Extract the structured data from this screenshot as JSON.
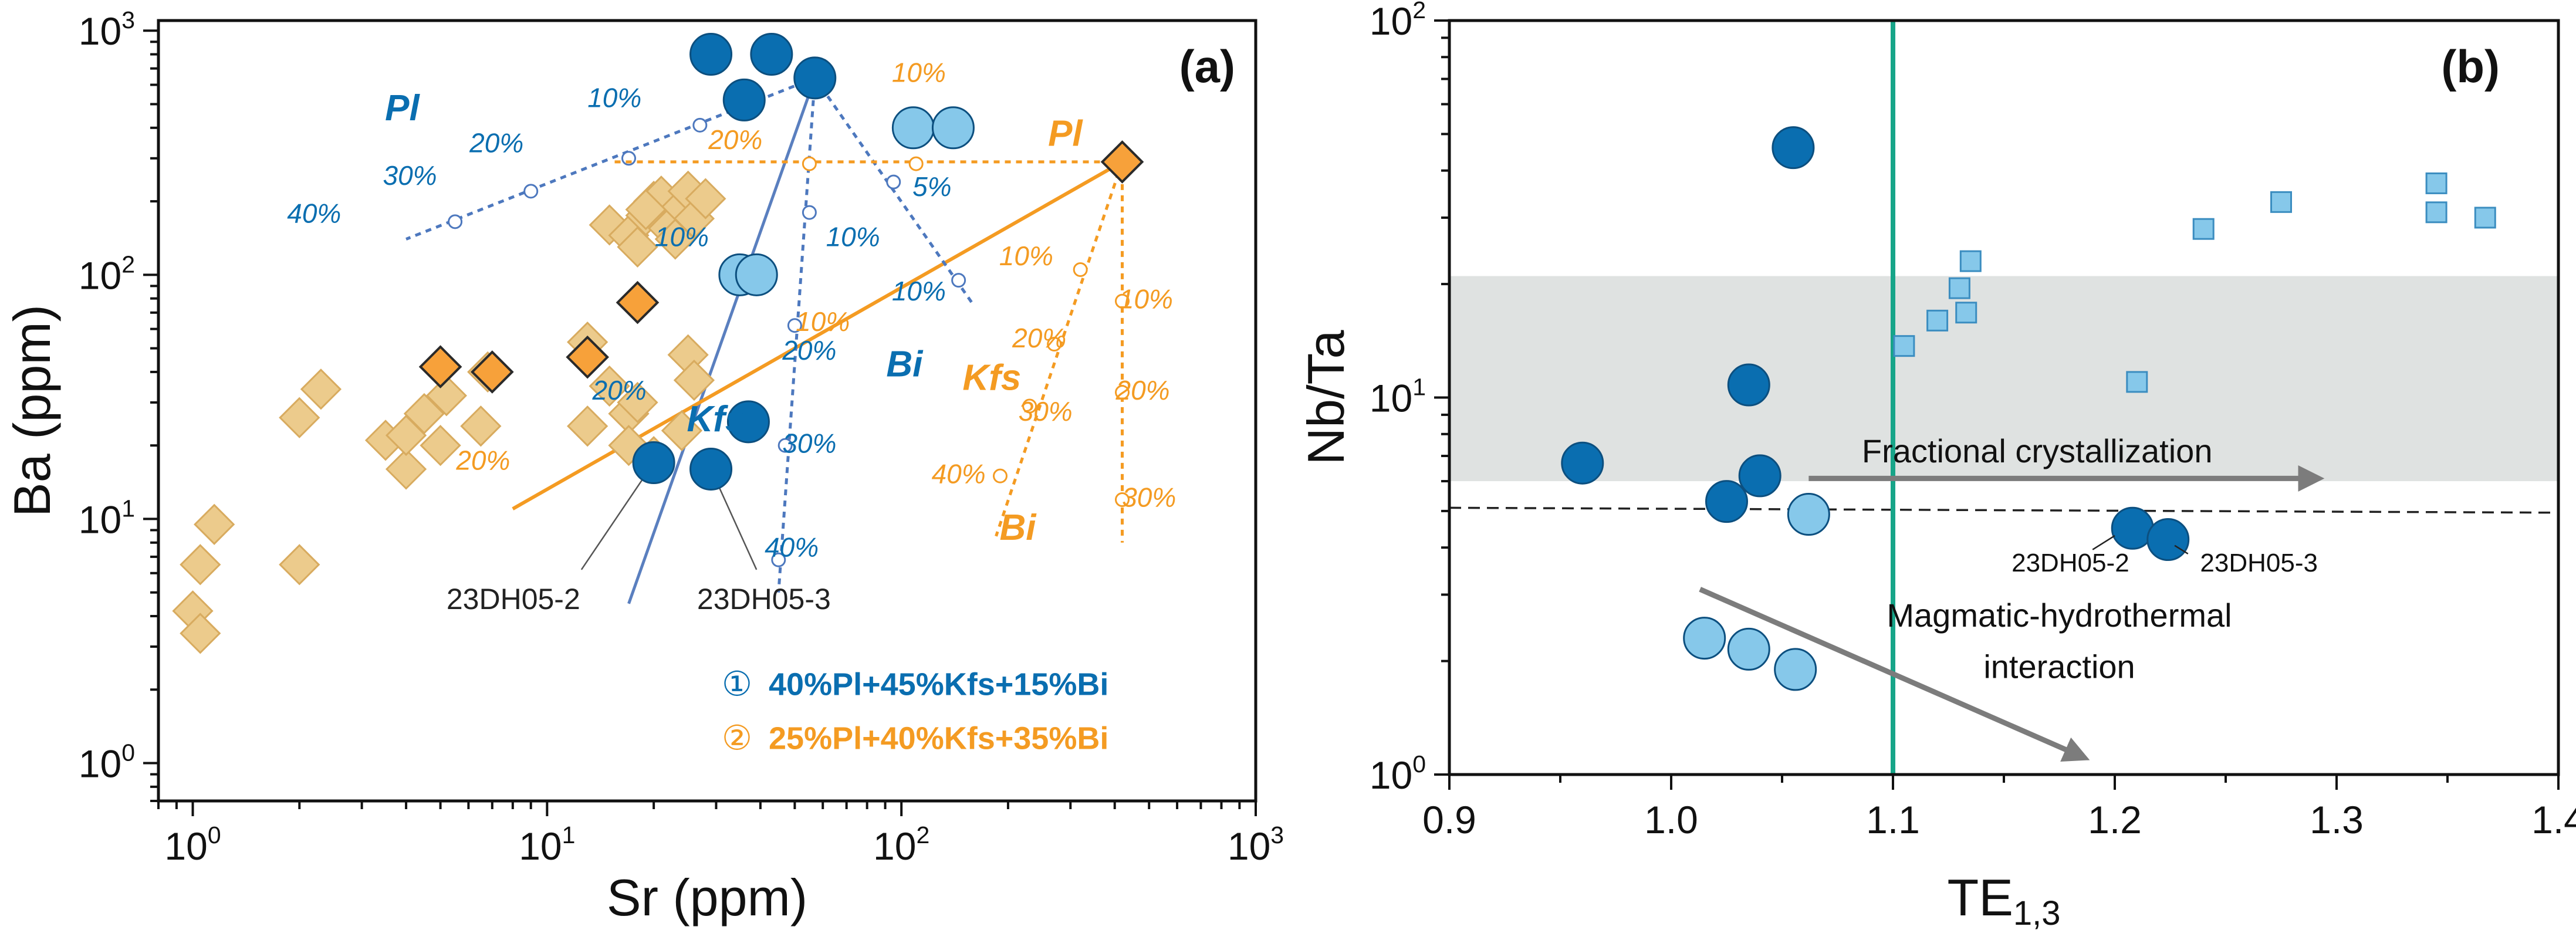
{
  "colors": {
    "blue_dark": "#0a6eb0",
    "blue_light": "#86c8ea",
    "orange": "#f49b22",
    "orange_fill": "#f7a13a",
    "tan": "#eccb8c",
    "tan_edge": "#d8ab5f",
    "teal": "#17a589",
    "gray_band": "#dfe2e1",
    "arrow": "#7c7c7c"
  },
  "chart_data": [
    {
      "type": "scatter",
      "panel_label": "(a)",
      "xscale": "log",
      "yscale": "log",
      "xlabel": "Sr (ppm)",
      "ylabel": "Ba (ppm)",
      "xlim": [
        0.8,
        1000
      ],
      "ylim": [
        0.7,
        1100
      ],
      "xticks": [
        {
          "v": 1,
          "base": "10",
          "exp": "0"
        },
        {
          "v": 10,
          "base": "10",
          "exp": "1"
        },
        {
          "v": 100,
          "base": "10",
          "exp": "2"
        },
        {
          "v": 1000,
          "base": "10",
          "exp": "3"
        }
      ],
      "yticks": [
        {
          "v": 1,
          "base": "10",
          "exp": "0"
        },
        {
          "v": 10,
          "base": "10",
          "exp": "1"
        },
        {
          "v": 100,
          "base": "10",
          "exp": "2"
        },
        {
          "v": 1000,
          "base": "10",
          "exp": "3"
        }
      ],
      "series": [
        {
          "name": "Tan diamonds",
          "marker": "diamond",
          "style": "tan",
          "points": [
            [
              1.0,
              4.2
            ],
            [
              1.05,
              3.4
            ],
            [
              1.05,
              6.5
            ],
            [
              1.15,
              9.5
            ],
            [
              2.0,
              6.5
            ],
            [
              2.0,
              26
            ],
            [
              2.3,
              34
            ],
            [
              3.5,
              21
            ],
            [
              4.0,
              16
            ],
            [
              4.0,
              22
            ],
            [
              4.5,
              27
            ],
            [
              5.0,
              20
            ],
            [
              5.2,
              32
            ],
            [
              6.5,
              24
            ],
            [
              6.8,
              40
            ],
            [
              13,
              53
            ],
            [
              13,
              24
            ],
            [
              15,
              35
            ],
            [
              17,
              27
            ],
            [
              17,
              20
            ],
            [
              18,
              30
            ],
            [
              20,
              18
            ],
            [
              24,
              23
            ],
            [
              25,
              47
            ],
            [
              26,
              37
            ],
            [
              15,
              160
            ],
            [
              17,
              145
            ],
            [
              18,
              130
            ],
            [
              19,
              175
            ],
            [
              20,
              200
            ],
            [
              21,
              210
            ],
            [
              22,
              155
            ],
            [
              24,
              190
            ],
            [
              25,
              220
            ],
            [
              26,
              170
            ],
            [
              28,
              205
            ],
            [
              23,
              140
            ],
            [
              19,
              185
            ]
          ]
        },
        {
          "name": "Orange diamonds",
          "marker": "diamond",
          "style": "orange",
          "points": [
            [
              5,
              42
            ],
            [
              7,
              40
            ],
            [
              13,
              46
            ],
            [
              18,
              77
            ],
            [
              420,
              290
            ]
          ]
        },
        {
          "name": "Dark blue circles",
          "marker": "circle",
          "style": "dark",
          "points": [
            [
              29,
              800
            ],
            [
              43,
              800
            ],
            [
              57,
              640
            ],
            [
              36,
              520
            ],
            [
              37,
              25
            ],
            [
              20,
              17
            ],
            [
              29,
              16
            ]
          ]
        },
        {
          "name": "Light blue circles",
          "marker": "circle",
          "style": "light",
          "points": [
            [
              108,
              400
            ],
            [
              140,
              400
            ],
            [
              35,
              100
            ],
            [
              39,
              100
            ]
          ]
        }
      ],
      "vectors": [
        {
          "name": "Pl",
          "color": "blue",
          "dash": true,
          "from": [
            57,
            640
          ],
          "to": [
            4,
            140
          ],
          "ticks": [
            [
              27,
              410
            ],
            [
              17,
              300
            ],
            [
              9,
              220
            ],
            [
              5.5,
              165
            ]
          ]
        },
        {
          "name": "Kfs",
          "color": "blue",
          "dash": true,
          "from": [
            57,
            640
          ],
          "to": [
            45,
            5
          ],
          "ticks": [
            [
              55,
              180
            ],
            [
              50,
              62
            ],
            [
              47,
              20
            ],
            [
              45,
              6.8
            ]
          ]
        },
        {
          "name": "Bi",
          "color": "blue",
          "dash": true,
          "from": [
            57,
            640
          ],
          "to": [
            160,
            75
          ],
          "ticks": [
            [
              95,
              240
            ],
            [
              145,
              95
            ]
          ]
        },
        {
          "name": "Pl",
          "color": "orange",
          "dash": true,
          "from": [
            420,
            290
          ],
          "to": [
            15,
            290
          ],
          "ticks": [
            [
              110,
              285
            ],
            [
              55,
              285
            ]
          ]
        },
        {
          "name": "Kfs",
          "color": "orange",
          "dash": true,
          "from": [
            420,
            290
          ],
          "to": [
            185,
            8.5
          ],
          "ticks": [
            [
              320,
              105
            ],
            [
              270,
              52
            ],
            [
              230,
              29
            ],
            [
              190,
              15
            ]
          ]
        },
        {
          "name": "Bi",
          "color": "orange",
          "dash": true,
          "from": [
            420,
            290
          ],
          "to": [
            420,
            8
          ],
          "ticks": [
            [
              420,
              78
            ],
            [
              420,
              33
            ],
            [
              420,
              12
            ]
          ]
        }
      ],
      "trend_lines": [
        {
          "color": "blue",
          "from": [
            17,
            4.5
          ],
          "to": [
            57,
            640
          ]
        },
        {
          "color": "orange",
          "from": [
            8,
            11
          ],
          "to": [
            420,
            290
          ]
        }
      ],
      "leader_lines": [
        {
          "from": [
            12.5,
            6.2
          ],
          "to": [
            20,
            17
          ]
        },
        {
          "from": [
            39,
            6.2
          ],
          "to": [
            29,
            16
          ]
        }
      ],
      "percent_labels": [
        {
          "text": "10%",
          "x": 15.5,
          "y": 520,
          "color": "blue"
        },
        {
          "text": "20%",
          "x": 7.2,
          "y": 340,
          "color": "blue"
        },
        {
          "text": "30%",
          "x": 4.1,
          "y": 250,
          "color": "blue"
        },
        {
          "text": "40%",
          "x": 2.2,
          "y": 175,
          "color": "blue"
        },
        {
          "text": "10%",
          "x": 24,
          "y": 140,
          "color": "blue"
        },
        {
          "text": "20%",
          "x": 16,
          "y": 33,
          "color": "blue"
        },
        {
          "text": "30%",
          "x": 55,
          "y": 20,
          "color": "blue"
        },
        {
          "text": "40%",
          "x": 49,
          "y": 7.5,
          "color": "blue"
        },
        {
          "text": "10%",
          "x": 73,
          "y": 140,
          "color": "blue"
        },
        {
          "text": "20%",
          "x": 55,
          "y": 48,
          "color": "blue"
        },
        {
          "text": "5%",
          "x": 122,
          "y": 225,
          "color": "blue"
        },
        {
          "text": "10%",
          "x": 112,
          "y": 84,
          "color": "blue"
        },
        {
          "text": "10%",
          "x": 112,
          "y": 660,
          "color": "orange"
        },
        {
          "text": "20%",
          "x": 34,
          "y": 350,
          "color": "orange"
        },
        {
          "text": "10%",
          "x": 60,
          "y": 63,
          "color": "orange"
        },
        {
          "text": "10%",
          "x": 225,
          "y": 117,
          "color": "orange"
        },
        {
          "text": "20%",
          "x": 245,
          "y": 54,
          "color": "orange"
        },
        {
          "text": "30%",
          "x": 255,
          "y": 27,
          "color": "orange"
        },
        {
          "text": "40%",
          "x": 145,
          "y": 15,
          "color": "orange"
        },
        {
          "text": "10%",
          "x": 490,
          "y": 78,
          "color": "orange"
        },
        {
          "text": "20%",
          "x": 480,
          "y": 33,
          "color": "orange"
        },
        {
          "text": "30%",
          "x": 500,
          "y": 12,
          "color": "orange"
        },
        {
          "text": "20%",
          "x": 6.6,
          "y": 17,
          "color": "orange"
        }
      ],
      "mineral_labels": [
        {
          "text": "Pl",
          "x": 3.9,
          "y": 470,
          "color": "blue",
          "size": 62
        },
        {
          "text": "Kfs",
          "x": 30,
          "y": 25,
          "color": "blue",
          "size": 62
        },
        {
          "text": "Bi",
          "x": 102,
          "y": 42,
          "color": "blue",
          "size": 62
        },
        {
          "text": "Pl",
          "x": 290,
          "y": 370,
          "color": "orange",
          "size": 62
        },
        {
          "text": "Kfs",
          "x": 180,
          "y": 37,
          "color": "orange",
          "size": 62
        },
        {
          "text": "Bi",
          "x": 213,
          "y": 9,
          "color": "orange",
          "size": 62
        }
      ],
      "annotations": [
        {
          "text": "23DH05-2",
          "x": 5.2,
          "y": 4.6
        },
        {
          "text": "23DH05-3",
          "x": 26.5,
          "y": 4.6
        }
      ],
      "legend": [
        {
          "marker": "①",
          "text": "40%Pl+45%Kfs+15%Bi",
          "color": "blue"
        },
        {
          "marker": "②",
          "text": "25%Pl+40%Kfs+35%Bi",
          "color": "orange"
        }
      ]
    },
    {
      "type": "scatter",
      "panel_label": "(b)",
      "xscale": "linear",
      "yscale": "log",
      "xlabel_main": "TE",
      "xlabel_sub": "1,3",
      "ylabel": "Nb/Ta",
      "xlim": [
        0.9,
        1.4
      ],
      "ylim": [
        1,
        100
      ],
      "xticks": [
        {
          "v": 0.9,
          "label": "0.9"
        },
        {
          "v": 1.0,
          "label": "1.0"
        },
        {
          "v": 1.1,
          "label": "1.1"
        },
        {
          "v": 1.2,
          "label": "1.2"
        },
        {
          "v": 1.3,
          "label": "1.3"
        },
        {
          "v": 1.4,
          "label": "1.4"
        }
      ],
      "yticks": [
        {
          "v": 1,
          "base": "10",
          "exp": "0"
        },
        {
          "v": 10,
          "base": "10",
          "exp": "1"
        },
        {
          "v": 100,
          "base": "10",
          "exp": "2"
        }
      ],
      "band": {
        "y0": 6,
        "y1": 21
      },
      "vline": {
        "x": 1.1
      },
      "dashed_line": {
        "from": [
          0.9,
          5.1
        ],
        "to": [
          1.4,
          4.95
        ]
      },
      "series": [
        {
          "name": "Dark blue circles",
          "marker": "circle",
          "style": "dark",
          "points": [
            [
              1.055,
              46
            ],
            [
              0.96,
              6.7
            ],
            [
              1.035,
              10.8
            ],
            [
              1.025,
              5.3
            ],
            [
              1.04,
              6.2
            ],
            [
              1.208,
              4.5
            ],
            [
              1.224,
              4.2
            ]
          ]
        },
        {
          "name": "Light blue circles",
          "marker": "circle",
          "style": "light",
          "points": [
            [
              1.062,
              4.9
            ],
            [
              1.015,
              2.3
            ],
            [
              1.035,
              2.15
            ],
            [
              1.056,
              1.9
            ]
          ]
        },
        {
          "name": "Light blue squares",
          "marker": "square",
          "style": "light",
          "points": [
            [
              1.105,
              13.7
            ],
            [
              1.12,
              16
            ],
            [
              1.13,
              19.5
            ],
            [
              1.133,
              16.8
            ],
            [
              1.135,
              23
            ],
            [
              1.21,
              11
            ],
            [
              1.24,
              28
            ],
            [
              1.275,
              33
            ],
            [
              1.345,
              37
            ],
            [
              1.345,
              31
            ],
            [
              1.367,
              30
            ]
          ]
        }
      ],
      "arrows": [
        {
          "name": "fractional",
          "from": [
            1.062,
            6.1
          ],
          "to": [
            1.285,
            6.1
          ]
        },
        {
          "name": "hydrothermal",
          "from": [
            1.013,
            3.1
          ],
          "to": [
            1.18,
            1.15
          ]
        }
      ],
      "leader_lines": [
        {
          "from": [
            1.19,
            3.95
          ],
          "to": [
            1.2,
            4.3
          ]
        },
        {
          "from": [
            1.233,
            3.85
          ],
          "to": [
            1.227,
            4.05
          ]
        }
      ],
      "annotations": [
        {
          "text": "Fractional crystallization",
          "x": 1.165,
          "y": 7.1,
          "size": 56
        },
        {
          "text": "Magmatic-hydrothermal",
          "x": 1.175,
          "y": 2.6,
          "size": 56
        },
        {
          "text": "interaction",
          "x": 1.175,
          "y": 1.9,
          "size": 56
        },
        {
          "text": "23DH05-2",
          "x": 1.18,
          "y": 3.6,
          "size": 44
        },
        {
          "text": "23DH05-3",
          "x": 1.265,
          "y": 3.6,
          "size": 44
        }
      ]
    }
  ]
}
